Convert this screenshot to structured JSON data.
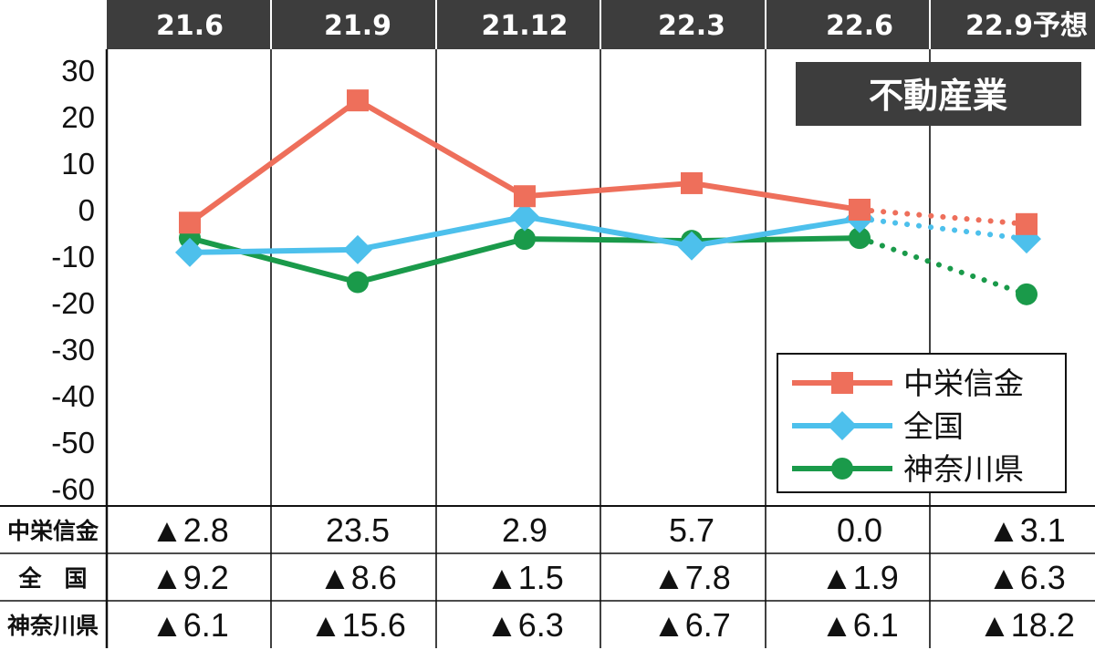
{
  "chart_data": {
    "type": "line",
    "title": "不動産業",
    "categories": [
      "21.6",
      "21.9",
      "21.12",
      "22.3",
      "22.6",
      "22.9予想"
    ],
    "forecast_index": 5,
    "ylim": [
      -60,
      30
    ],
    "yticks": [
      30,
      20,
      10,
      0,
      -10,
      -20,
      -30,
      -40,
      -50,
      -60
    ],
    "grid": "vertical",
    "legend_position": "bottom-right",
    "series": [
      {
        "name": "中栄信金",
        "color": "#ee6f5b",
        "marker": "square",
        "values": [
          -2.8,
          23.5,
          2.9,
          5.7,
          0.0,
          -3.1
        ]
      },
      {
        "name": "全国",
        "color": "#4dc0ec",
        "marker": "diamond",
        "values": [
          -9.2,
          -8.6,
          -1.5,
          -7.8,
          -1.9,
          -6.3
        ]
      },
      {
        "name": "神奈川県",
        "color": "#1a9a4a",
        "marker": "circle",
        "values": [
          -6.1,
          -15.6,
          -6.3,
          -6.7,
          -6.1,
          -18.2
        ]
      }
    ]
  },
  "table": {
    "rows": [
      {
        "label": "中栄信金",
        "cells": [
          "▲2.8",
          "23.5",
          "2.9",
          "5.7",
          "0.0",
          "▲3.1"
        ]
      },
      {
        "label": "全　国",
        "cells": [
          "▲9.2",
          "▲8.6",
          "▲1.5",
          "▲7.8",
          "▲1.9",
          "▲6.3"
        ]
      },
      {
        "label": "神奈川県",
        "cells": [
          "▲6.1",
          "▲15.6",
          "▲6.3",
          "▲6.7",
          "▲6.1",
          "▲18.2"
        ]
      }
    ]
  }
}
